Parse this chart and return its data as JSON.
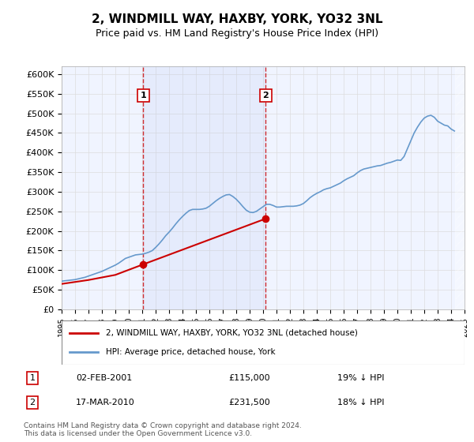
{
  "title": "2, WINDMILL WAY, HAXBY, YORK, YO32 3NL",
  "subtitle": "Price paid vs. HM Land Registry's House Price Index (HPI)",
  "ylabel": "",
  "xlabel": "",
  "ylim": [
    0,
    620000
  ],
  "yticks": [
    0,
    50000,
    100000,
    150000,
    200000,
    250000,
    300000,
    350000,
    400000,
    450000,
    500000,
    550000,
    600000
  ],
  "ytick_labels": [
    "£0",
    "£50K",
    "£100K",
    "£150K",
    "£200K",
    "£250K",
    "£300K",
    "£350K",
    "£400K",
    "£450K",
    "£500K",
    "£550K",
    "£600K"
  ],
  "sale1_x": 2001.085,
  "sale1_y": 115000,
  "sale2_x": 2010.205,
  "sale2_y": 231500,
  "legend1": "2, WINDMILL WAY, HAXBY, YORK, YO32 3NL (detached house)",
  "legend2": "HPI: Average price, detached house, York",
  "annotation1": [
    "1",
    "02-FEB-2001",
    "£115,000",
    "19% ↓ HPI"
  ],
  "annotation2": [
    "2",
    "17-MAR-2010",
    "£231,500",
    "18% ↓ HPI"
  ],
  "footnote": "Contains HM Land Registry data © Crown copyright and database right 2024.\nThis data is licensed under the Open Government Licence v3.0.",
  "bg_color": "#f0f4ff",
  "hatch_color": "#c0c8e8",
  "red_line_color": "#cc0000",
  "blue_line_color": "#6699cc",
  "grid_color": "#dddddd",
  "hpi_data_x": [
    1995.0,
    1995.25,
    1995.5,
    1995.75,
    1996.0,
    1996.25,
    1996.5,
    1996.75,
    1997.0,
    1997.25,
    1997.5,
    1997.75,
    1998.0,
    1998.25,
    1998.5,
    1998.75,
    1999.0,
    1999.25,
    1999.5,
    1999.75,
    2000.0,
    2000.25,
    2000.5,
    2000.75,
    2001.0,
    2001.25,
    2001.5,
    2001.75,
    2002.0,
    2002.25,
    2002.5,
    2002.75,
    2003.0,
    2003.25,
    2003.5,
    2003.75,
    2004.0,
    2004.25,
    2004.5,
    2004.75,
    2005.0,
    2005.25,
    2005.5,
    2005.75,
    2006.0,
    2006.25,
    2006.5,
    2006.75,
    2007.0,
    2007.25,
    2007.5,
    2007.75,
    2008.0,
    2008.25,
    2008.5,
    2008.75,
    2009.0,
    2009.25,
    2009.5,
    2009.75,
    2010.0,
    2010.25,
    2010.5,
    2010.75,
    2011.0,
    2011.25,
    2011.5,
    2011.75,
    2012.0,
    2012.25,
    2012.5,
    2012.75,
    2013.0,
    2013.25,
    2013.5,
    2013.75,
    2014.0,
    2014.25,
    2014.5,
    2014.75,
    2015.0,
    2015.25,
    2015.5,
    2015.75,
    2016.0,
    2016.25,
    2016.5,
    2016.75,
    2017.0,
    2017.25,
    2017.5,
    2017.75,
    2018.0,
    2018.25,
    2018.5,
    2018.75,
    2019.0,
    2019.25,
    2019.5,
    2019.75,
    2020.0,
    2020.25,
    2020.5,
    2020.75,
    2021.0,
    2021.25,
    2021.5,
    2021.75,
    2022.0,
    2022.25,
    2022.5,
    2022.75,
    2023.0,
    2023.25,
    2023.5,
    2023.75,
    2024.0,
    2024.25
  ],
  "hpi_data_y": [
    72000,
    73000,
    74000,
    75000,
    76000,
    78000,
    80000,
    82000,
    85000,
    88000,
    91000,
    94000,
    97000,
    101000,
    105000,
    109000,
    113000,
    118000,
    124000,
    130000,
    133000,
    136000,
    139000,
    140000,
    141000,
    143000,
    146000,
    150000,
    158000,
    167000,
    177000,
    188000,
    197000,
    207000,
    218000,
    228000,
    237000,
    245000,
    252000,
    255000,
    255000,
    255000,
    256000,
    258000,
    263000,
    270000,
    277000,
    283000,
    288000,
    292000,
    293000,
    288000,
    281000,
    272000,
    262000,
    253000,
    248000,
    247000,
    250000,
    256000,
    262000,
    268000,
    268000,
    265000,
    261000,
    261000,
    262000,
    263000,
    263000,
    263000,
    264000,
    266000,
    270000,
    277000,
    285000,
    291000,
    296000,
    300000,
    305000,
    308000,
    310000,
    314000,
    318000,
    322000,
    328000,
    333000,
    337000,
    341000,
    348000,
    354000,
    358000,
    360000,
    362000,
    364000,
    366000,
    367000,
    370000,
    373000,
    375000,
    378000,
    381000,
    380000,
    390000,
    410000,
    430000,
    450000,
    465000,
    478000,
    488000,
    493000,
    495000,
    490000,
    480000,
    475000,
    470000,
    468000,
    460000,
    455000
  ],
  "price_paid_x": [
    1995.0,
    1997.0,
    1999.0,
    2001.085,
    2010.205
  ],
  "price_paid_y": [
    65000,
    75000,
    88000,
    115000,
    231500
  ],
  "xmin": 1995.0,
  "xmax": 2025.0
}
